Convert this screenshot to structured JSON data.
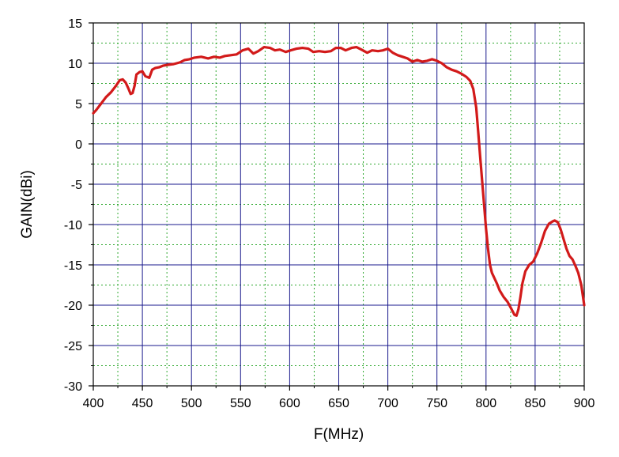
{
  "chart_data": {
    "type": "line",
    "title": "",
    "xlabel": "F(MHz)",
    "ylabel": "GAIN(dBi)",
    "xlim": [
      400,
      900
    ],
    "ylim": [
      -30,
      15
    ],
    "x_ticks": [
      400,
      450,
      500,
      550,
      600,
      650,
      700,
      750,
      800,
      850,
      900
    ],
    "y_ticks": [
      15,
      10,
      5,
      0,
      -5,
      -10,
      -15,
      -20,
      -25,
      -30
    ],
    "grid": true,
    "legend": "none",
    "colors": {
      "line": "#d21a1a",
      "major_grid": "#1a1a8c",
      "minor_grid": "#2fa82f",
      "axis": "#000000"
    },
    "series": [
      {
        "x": [
          400,
          403,
          408,
          413,
          418,
          423,
          427,
          430,
          433,
          436,
          438,
          440,
          442,
          444,
          447,
          450,
          453,
          457,
          460,
          463,
          467,
          471,
          476,
          482,
          488,
          493,
          498,
          503,
          510,
          517,
          523,
          529,
          534,
          540,
          546,
          552,
          558,
          563,
          568,
          574,
          580,
          585,
          590,
          596,
          601,
          607,
          613,
          619,
          624,
          630,
          636,
          642,
          647,
          652,
          657,
          663,
          668,
          673,
          679,
          684,
          690,
          695,
          700,
          705,
          710,
          715,
          720,
          725,
          730,
          735,
          740,
          745,
          750,
          755,
          760,
          765,
          770,
          775,
          780,
          784,
          787,
          790,
          792,
          794,
          796,
          798,
          800,
          802,
          804,
          806,
          808,
          811,
          814,
          818,
          822,
          826,
          829,
          831,
          833,
          835,
          837,
          840,
          844,
          848,
          852,
          856,
          860,
          864,
          868,
          870,
          873,
          876,
          879,
          882,
          885,
          888,
          891,
          894,
          897,
          900
        ],
        "y": [
          3.8,
          4.2,
          5.0,
          5.8,
          6.4,
          7.2,
          7.9,
          8.0,
          7.6,
          6.8,
          6.2,
          6.3,
          7.2,
          8.6,
          8.9,
          9.0,
          8.4,
          8.2,
          9.2,
          9.4,
          9.5,
          9.7,
          9.8,
          9.9,
          10.1,
          10.4,
          10.5,
          10.7,
          10.8,
          10.6,
          10.8,
          10.7,
          10.9,
          11.0,
          11.1,
          11.6,
          11.8,
          11.2,
          11.5,
          12.0,
          11.9,
          11.6,
          11.7,
          11.4,
          11.6,
          11.8,
          11.9,
          11.8,
          11.4,
          11.5,
          11.4,
          11.5,
          11.9,
          11.9,
          11.6,
          11.9,
          12.0,
          11.7,
          11.3,
          11.6,
          11.5,
          11.6,
          11.8,
          11.3,
          11.0,
          10.8,
          10.6,
          10.2,
          10.4,
          10.2,
          10.3,
          10.5,
          10.3,
          10.0,
          9.5,
          9.2,
          9.0,
          8.7,
          8.3,
          7.8,
          6.8,
          4.5,
          1.5,
          -1.5,
          -4.5,
          -7.5,
          -10.5,
          -13.0,
          -15.0,
          -16.0,
          -16.5,
          -17.3,
          -18.2,
          -19.0,
          -19.6,
          -20.5,
          -21.2,
          -21.3,
          -20.5,
          -19.0,
          -17.3,
          -15.8,
          -15.0,
          -14.6,
          -13.6,
          -12.3,
          -10.8,
          -9.9,
          -9.6,
          -9.5,
          -9.7,
          -10.6,
          -11.8,
          -13.0,
          -13.9,
          -14.3,
          -15.1,
          -16.0,
          -17.5,
          -20.0
        ]
      }
    ]
  }
}
